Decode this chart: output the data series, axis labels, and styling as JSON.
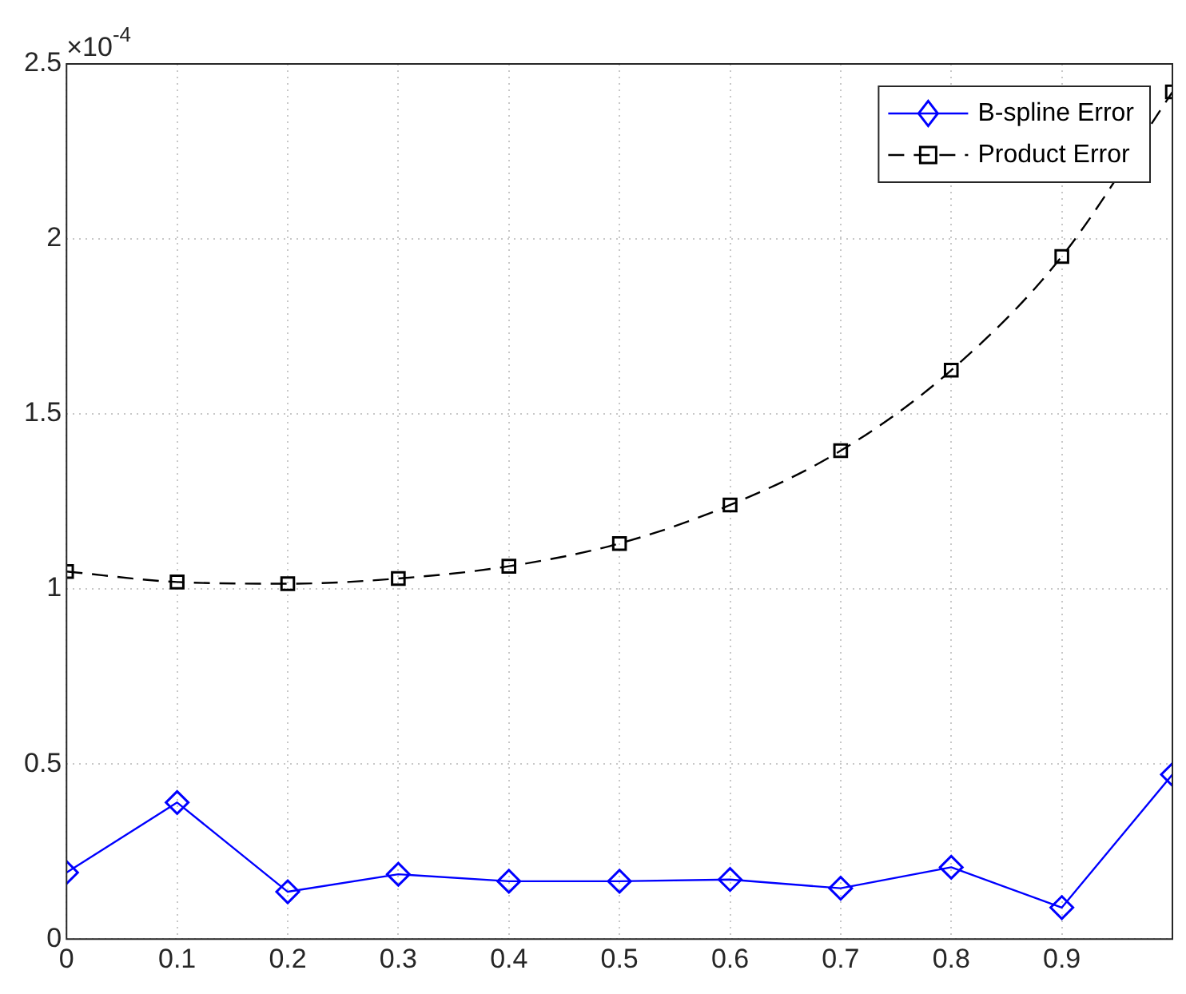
{
  "chart_data": {
    "type": "line",
    "x": [
      0,
      0.1,
      0.2,
      0.3,
      0.4,
      0.5,
      0.6,
      0.7,
      0.8,
      0.9,
      1.0
    ],
    "series": [
      {
        "name": "B-spline Error",
        "color": "#0000ff",
        "marker": "diamond",
        "line_style": "solid",
        "values": [
          0.19,
          0.39,
          0.135,
          0.185,
          0.165,
          0.165,
          0.17,
          0.145,
          0.205,
          0.09,
          0.47
        ]
      },
      {
        "name": "Product Error",
        "color": "#000000",
        "marker": "square",
        "line_style": "dashed",
        "values": [
          1.05,
          1.02,
          1.015,
          1.03,
          1.065,
          1.13,
          1.24,
          1.395,
          1.625,
          1.95,
          2.42
        ]
      }
    ],
    "xlim": [
      0,
      1
    ],
    "xticks": [
      0,
      0.1,
      0.2,
      0.3,
      0.4,
      0.5,
      0.6,
      0.7,
      0.8,
      0.9,
      {
        "value": 1,
        "label": null
      }
    ],
    "ylim": [
      0,
      2.5
    ],
    "yticks": [
      0,
      0.5,
      1,
      1.5,
      2,
      2.5
    ],
    "annotations": [
      "×10$^{-4}$"
    ],
    "grid": true,
    "legend": "top right"
  }
}
